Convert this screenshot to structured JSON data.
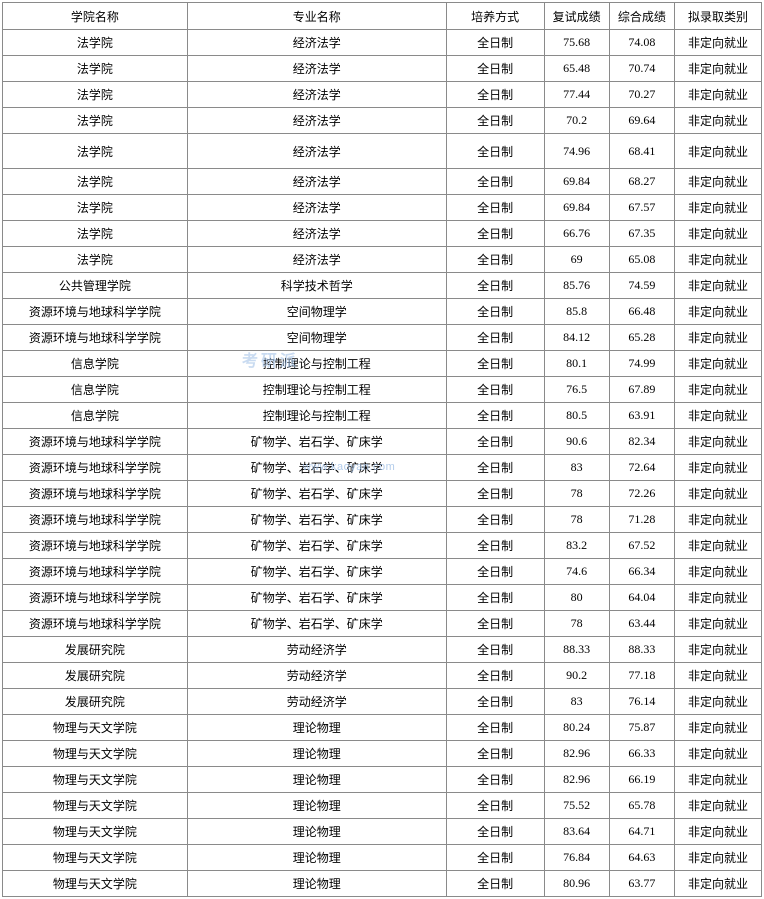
{
  "columns": [
    "学院名称",
    "专业名称",
    "培养方式",
    "复试成绩",
    "综合成绩",
    "拟录取类别"
  ],
  "watermark_url": "www.kaoyan.com",
  "watermark_text": "考研派",
  "colors": {
    "border": "#8a8a8a",
    "text": "#000000",
    "background": "#ffffff",
    "watermark": "#a6c4e8"
  },
  "tall_rows": [
    4
  ],
  "rows": [
    [
      "法学院",
      "经济法学",
      "全日制",
      "75.68",
      "74.08",
      "非定向就业"
    ],
    [
      "法学院",
      "经济法学",
      "全日制",
      "65.48",
      "70.74",
      "非定向就业"
    ],
    [
      "法学院",
      "经济法学",
      "全日制",
      "77.44",
      "70.27",
      "非定向就业"
    ],
    [
      "法学院",
      "经济法学",
      "全日制",
      "70.2",
      "69.64",
      "非定向就业"
    ],
    [
      "法学院",
      "经济法学",
      "全日制",
      "74.96",
      "68.41",
      "非定向就业"
    ],
    [
      "法学院",
      "经济法学",
      "全日制",
      "69.84",
      "68.27",
      "非定向就业"
    ],
    [
      "法学院",
      "经济法学",
      "全日制",
      "69.84",
      "67.57",
      "非定向就业"
    ],
    [
      "法学院",
      "经济法学",
      "全日制",
      "66.76",
      "67.35",
      "非定向就业"
    ],
    [
      "法学院",
      "经济法学",
      "全日制",
      "69",
      "65.08",
      "非定向就业"
    ],
    [
      "公共管理学院",
      "科学技术哲学",
      "全日制",
      "85.76",
      "74.59",
      "非定向就业"
    ],
    [
      "资源环境与地球科学学院",
      "空间物理学",
      "全日制",
      "85.8",
      "66.48",
      "非定向就业"
    ],
    [
      "资源环境与地球科学学院",
      "空间物理学",
      "全日制",
      "84.12",
      "65.28",
      "非定向就业"
    ],
    [
      "信息学院",
      "控制理论与控制工程",
      "全日制",
      "80.1",
      "74.99",
      "非定向就业"
    ],
    [
      "信息学院",
      "控制理论与控制工程",
      "全日制",
      "76.5",
      "67.89",
      "非定向就业"
    ],
    [
      "信息学院",
      "控制理论与控制工程",
      "全日制",
      "80.5",
      "63.91",
      "非定向就业"
    ],
    [
      "资源环境与地球科学学院",
      "矿物学、岩石学、矿床学",
      "全日制",
      "90.6",
      "82.34",
      "非定向就业"
    ],
    [
      "资源环境与地球科学学院",
      "矿物学、岩石学、矿床学",
      "全日制",
      "83",
      "72.64",
      "非定向就业"
    ],
    [
      "资源环境与地球科学学院",
      "矿物学、岩石学、矿床学",
      "全日制",
      "78",
      "72.26",
      "非定向就业"
    ],
    [
      "资源环境与地球科学学院",
      "矿物学、岩石学、矿床学",
      "全日制",
      "78",
      "71.28",
      "非定向就业"
    ],
    [
      "资源环境与地球科学学院",
      "矿物学、岩石学、矿床学",
      "全日制",
      "83.2",
      "67.52",
      "非定向就业"
    ],
    [
      "资源环境与地球科学学院",
      "矿物学、岩石学、矿床学",
      "全日制",
      "74.6",
      "66.34",
      "非定向就业"
    ],
    [
      "资源环境与地球科学学院",
      "矿物学、岩石学、矿床学",
      "全日制",
      "80",
      "64.04",
      "非定向就业"
    ],
    [
      "资源环境与地球科学学院",
      "矿物学、岩石学、矿床学",
      "全日制",
      "78",
      "63.44",
      "非定向就业"
    ],
    [
      "发展研究院",
      "劳动经济学",
      "全日制",
      "88.33",
      "88.33",
      "非定向就业"
    ],
    [
      "发展研究院",
      "劳动经济学",
      "全日制",
      "90.2",
      "77.18",
      "非定向就业"
    ],
    [
      "发展研究院",
      "劳动经济学",
      "全日制",
      "83",
      "76.14",
      "非定向就业"
    ],
    [
      "物理与天文学院",
      "理论物理",
      "全日制",
      "80.24",
      "75.87",
      "非定向就业"
    ],
    [
      "物理与天文学院",
      "理论物理",
      "全日制",
      "82.96",
      "66.33",
      "非定向就业"
    ],
    [
      "物理与天文学院",
      "理论物理",
      "全日制",
      "82.96",
      "66.19",
      "非定向就业"
    ],
    [
      "物理与天文学院",
      "理论物理",
      "全日制",
      "75.52",
      "65.78",
      "非定向就业"
    ],
    [
      "物理与天文学院",
      "理论物理",
      "全日制",
      "83.64",
      "64.71",
      "非定向就业"
    ],
    [
      "物理与天文学院",
      "理论物理",
      "全日制",
      "76.84",
      "64.63",
      "非定向就业"
    ],
    [
      "物理与天文学院",
      "理论物理",
      "全日制",
      "80.96",
      "63.77",
      "非定向就业"
    ]
  ]
}
